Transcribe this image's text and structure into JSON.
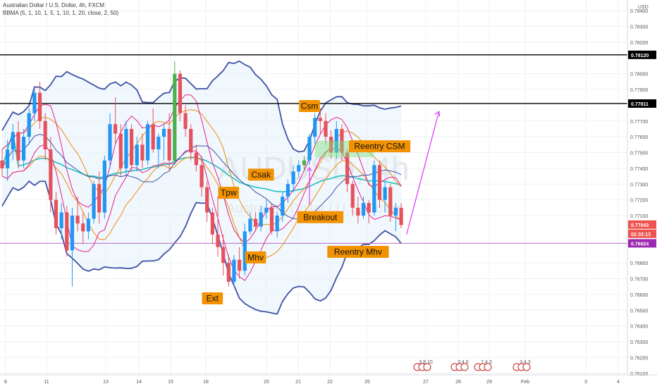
{
  "header": {
    "symbol": "Australian Dollar / U.S. Dollar, 4h, FXCM",
    "indicator": "BBMA (5, 1, 10, 1, 5, 1, 10, 1, 20, close, 2, 50)"
  },
  "watermark": {
    "ticker": "AUDUSD, 4h",
    "name": "Australian Dollar / U.S. Dollar"
  },
  "chart_data": {
    "type": "candlestick",
    "y_axis": {
      "currency": "USD",
      "range": [
        0.7609,
        0.7845
      ],
      "ticks": [
        "0.78400",
        "0.78300",
        "0.78200",
        "0.78120",
        "0.78000",
        "0.77900",
        "0.77811",
        "0.77700",
        "0.77600",
        "0.77500",
        "0.77400",
        "0.77300",
        "0.77200",
        "0.77100",
        "0.77043",
        "02:33:13",
        "0.76924",
        "0.76800",
        "0.76700",
        "0.76600",
        "0.76500",
        "0.76400",
        "0.76300",
        "0.76200",
        "0.76100"
      ]
    },
    "x_axis": {
      "ticks": [
        "8",
        "11",
        "13",
        "14",
        "15",
        "18",
        "20",
        "21",
        "22",
        "25",
        "27",
        "28",
        "29",
        "Feb",
        "3",
        "4"
      ]
    },
    "price_tags": [
      {
        "label": "0.78120",
        "value": 0.7812,
        "color": "#000000"
      },
      {
        "label": "0.77811",
        "value": 0.77811,
        "color": "#000000"
      },
      {
        "label": "0.77043",
        "value": 0.77043,
        "color": "#ef5350"
      },
      {
        "label": "02:33:13",
        "value": 0.76985,
        "color": "#ef5350"
      },
      {
        "label": "0.76924",
        "value": 0.76924,
        "color": "#9c27b0"
      }
    ],
    "horizontal_lines": [
      {
        "value": 0.7812,
        "color": "#000000"
      },
      {
        "value": 0.77811,
        "color": "#000000"
      },
      {
        "value": 0.76924,
        "color": "#ba68c8"
      }
    ],
    "candles": [
      {
        "o": 0.7745,
        "h": 0.7752,
        "l": 0.7735,
        "c": 0.774
      },
      {
        "o": 0.774,
        "h": 0.7758,
        "l": 0.7732,
        "c": 0.7752
      },
      {
        "o": 0.7752,
        "h": 0.7768,
        "l": 0.7745,
        "c": 0.7763
      },
      {
        "o": 0.7763,
        "h": 0.777,
        "l": 0.774,
        "c": 0.7745
      },
      {
        "o": 0.7745,
        "h": 0.7765,
        "l": 0.774,
        "c": 0.776
      },
      {
        "o": 0.776,
        "h": 0.7778,
        "l": 0.7755,
        "c": 0.7775
      },
      {
        "o": 0.7775,
        "h": 0.779,
        "l": 0.777,
        "c": 0.7788
      },
      {
        "o": 0.7788,
        "h": 0.7795,
        "l": 0.7765,
        "c": 0.777
      },
      {
        "o": 0.777,
        "h": 0.7775,
        "l": 0.7745,
        "c": 0.7752
      },
      {
        "o": 0.7752,
        "h": 0.776,
        "l": 0.7712,
        "c": 0.772
      },
      {
        "o": 0.772,
        "h": 0.7725,
        "l": 0.7698,
        "c": 0.7702
      },
      {
        "o": 0.7702,
        "h": 0.7718,
        "l": 0.7695,
        "c": 0.7712
      },
      {
        "o": 0.7712,
        "h": 0.7716,
        "l": 0.7684,
        "c": 0.7688
      },
      {
        "o": 0.7688,
        "h": 0.7715,
        "l": 0.7665,
        "c": 0.771
      },
      {
        "o": 0.771,
        "h": 0.7722,
        "l": 0.77,
        "c": 0.7705
      },
      {
        "o": 0.7705,
        "h": 0.7712,
        "l": 0.7692,
        "c": 0.77
      },
      {
        "o": 0.77,
        "h": 0.7712,
        "l": 0.7695,
        "c": 0.7708
      },
      {
        "o": 0.7708,
        "h": 0.7732,
        "l": 0.7705,
        "c": 0.773
      },
      {
        "o": 0.773,
        "h": 0.7738,
        "l": 0.7705,
        "c": 0.7712
      },
      {
        "o": 0.7712,
        "h": 0.7748,
        "l": 0.7708,
        "c": 0.7745
      },
      {
        "o": 0.7745,
        "h": 0.7775,
        "l": 0.774,
        "c": 0.7768
      },
      {
        "o": 0.7768,
        "h": 0.7785,
        "l": 0.7755,
        "c": 0.7762
      },
      {
        "o": 0.7762,
        "h": 0.7768,
        "l": 0.7735,
        "c": 0.774
      },
      {
        "o": 0.774,
        "h": 0.777,
        "l": 0.7735,
        "c": 0.7765
      },
      {
        "o": 0.7765,
        "h": 0.7768,
        "l": 0.7738,
        "c": 0.7742
      },
      {
        "o": 0.7742,
        "h": 0.776,
        "l": 0.7738,
        "c": 0.7755
      },
      {
        "o": 0.7755,
        "h": 0.7762,
        "l": 0.774,
        "c": 0.7745
      },
      {
        "o": 0.7745,
        "h": 0.777,
        "l": 0.7742,
        "c": 0.7768
      },
      {
        "o": 0.7768,
        "h": 0.7778,
        "l": 0.775,
        "c": 0.7752
      },
      {
        "o": 0.7752,
        "h": 0.7762,
        "l": 0.774,
        "c": 0.776
      },
      {
        "o": 0.776,
        "h": 0.7768,
        "l": 0.7745,
        "c": 0.7765
      },
      {
        "o": 0.7765,
        "h": 0.7775,
        "l": 0.7738,
        "c": 0.7745
      },
      {
        "o": 0.7745,
        "h": 0.7808,
        "l": 0.7742,
        "c": 0.78
      },
      {
        "o": 0.78,
        "h": 0.7802,
        "l": 0.777,
        "c": 0.7775
      },
      {
        "o": 0.7775,
        "h": 0.778,
        "l": 0.776,
        "c": 0.7765
      },
      {
        "o": 0.7765,
        "h": 0.7768,
        "l": 0.7745,
        "c": 0.775
      },
      {
        "o": 0.775,
        "h": 0.7755,
        "l": 0.7738,
        "c": 0.7742
      },
      {
        "o": 0.7742,
        "h": 0.7748,
        "l": 0.7722,
        "c": 0.7728
      },
      {
        "o": 0.7728,
        "h": 0.7732,
        "l": 0.7706,
        "c": 0.7712
      },
      {
        "o": 0.7712,
        "h": 0.7715,
        "l": 0.7692,
        "c": 0.7698
      },
      {
        "o": 0.7698,
        "h": 0.7722,
        "l": 0.7684,
        "c": 0.769
      },
      {
        "o": 0.769,
        "h": 0.7698,
        "l": 0.7672,
        "c": 0.768
      },
      {
        "o": 0.768,
        "h": 0.7685,
        "l": 0.7665,
        "c": 0.7668
      },
      {
        "o": 0.7668,
        "h": 0.7685,
        "l": 0.7665,
        "c": 0.7682
      },
      {
        "o": 0.7682,
        "h": 0.769,
        "l": 0.767,
        "c": 0.7675
      },
      {
        "o": 0.7675,
        "h": 0.7705,
        "l": 0.7672,
        "c": 0.77
      },
      {
        "o": 0.77,
        "h": 0.7712,
        "l": 0.7698,
        "c": 0.7708
      },
      {
        "o": 0.7708,
        "h": 0.7712,
        "l": 0.77,
        "c": 0.7703
      },
      {
        "o": 0.7703,
        "h": 0.7716,
        "l": 0.77,
        "c": 0.7712
      },
      {
        "o": 0.7712,
        "h": 0.772,
        "l": 0.7708,
        "c": 0.7715
      },
      {
        "o": 0.7715,
        "h": 0.7718,
        "l": 0.7698,
        "c": 0.77
      },
      {
        "o": 0.77,
        "h": 0.7712,
        "l": 0.7696,
        "c": 0.771
      },
      {
        "o": 0.771,
        "h": 0.7725,
        "l": 0.7706,
        "c": 0.7722
      },
      {
        "o": 0.7722,
        "h": 0.7733,
        "l": 0.7718,
        "c": 0.773
      },
      {
        "o": 0.773,
        "h": 0.7742,
        "l": 0.7725,
        "c": 0.7738
      },
      {
        "o": 0.7738,
        "h": 0.7745,
        "l": 0.7734,
        "c": 0.7742
      },
      {
        "o": 0.7742,
        "h": 0.7748,
        "l": 0.7738,
        "c": 0.7745
      },
      {
        "o": 0.7745,
        "h": 0.7762,
        "l": 0.7742,
        "c": 0.776
      },
      {
        "o": 0.776,
        "h": 0.7775,
        "l": 0.7755,
        "c": 0.7772
      },
      {
        "o": 0.7772,
        "h": 0.7778,
        "l": 0.7762,
        "c": 0.777
      },
      {
        "o": 0.777,
        "h": 0.7775,
        "l": 0.7755,
        "c": 0.776
      },
      {
        "o": 0.776,
        "h": 0.7764,
        "l": 0.7746,
        "c": 0.775
      },
      {
        "o": 0.775,
        "h": 0.777,
        "l": 0.7746,
        "c": 0.7765
      },
      {
        "o": 0.7765,
        "h": 0.7768,
        "l": 0.7745,
        "c": 0.775
      },
      {
        "o": 0.775,
        "h": 0.7752,
        "l": 0.7725,
        "c": 0.773
      },
      {
        "o": 0.773,
        "h": 0.7732,
        "l": 0.771,
        "c": 0.7715
      },
      {
        "o": 0.7715,
        "h": 0.7722,
        "l": 0.7705,
        "c": 0.771
      },
      {
        "o": 0.771,
        "h": 0.7722,
        "l": 0.7708,
        "c": 0.7718
      },
      {
        "o": 0.7718,
        "h": 0.772,
        "l": 0.7705,
        "c": 0.7712
      },
      {
        "o": 0.7712,
        "h": 0.7745,
        "l": 0.771,
        "c": 0.7742
      },
      {
        "o": 0.7742,
        "h": 0.7745,
        "l": 0.7715,
        "c": 0.772
      },
      {
        "o": 0.772,
        "h": 0.7732,
        "l": 0.7712,
        "c": 0.7728
      },
      {
        "o": 0.7728,
        "h": 0.773,
        "l": 0.7706,
        "c": 0.771
      },
      {
        "o": 0.771,
        "h": 0.7718,
        "l": 0.77,
        "c": 0.7715
      },
      {
        "o": 0.7715,
        "h": 0.7718,
        "l": 0.7702,
        "c": 0.7704
      }
    ],
    "annotations": [
      {
        "text": "Csm",
        "candle": 57,
        "price": 0.77795
      },
      {
        "text": "Csak",
        "candle": 48,
        "price": 0.7736
      },
      {
        "text": "Tpw",
        "candle": 42,
        "price": 0.77245
      },
      {
        "text": "Breakout",
        "candle": 59,
        "price": 0.7709
      },
      {
        "text": "Reentry CSM",
        "candle": 70,
        "price": 0.7754
      },
      {
        "text": "Mhv",
        "candle": 47,
        "price": 0.76835
      },
      {
        "text": "Reentry Mhv",
        "candle": 66,
        "price": 0.7687
      },
      {
        "text": "Ext",
        "candle": 39,
        "price": 0.76575
      }
    ],
    "arrow": {
      "from_candle": 75,
      "from_price": 0.7698,
      "to_candle": 81,
      "to_price": 0.7776,
      "color": "#e040fb"
    },
    "marker": {
      "candle": 57,
      "from_price": 0.7717,
      "to_price": 0.77405,
      "color": "#e040fb"
    },
    "events": [
      "3 8 10",
      "3 4 6",
      "7 4 3",
      "3 4 3"
    ],
    "colors": {
      "up": "#2196f3",
      "down": "#e5525e",
      "highlight_up": "#4caf50",
      "annotation_bg": "#f29200",
      "bb": "#3f51a5",
      "ma5": "#e91e8c",
      "ma10": "#ef8a0e",
      "ema50": "#22bfc1"
    }
  }
}
